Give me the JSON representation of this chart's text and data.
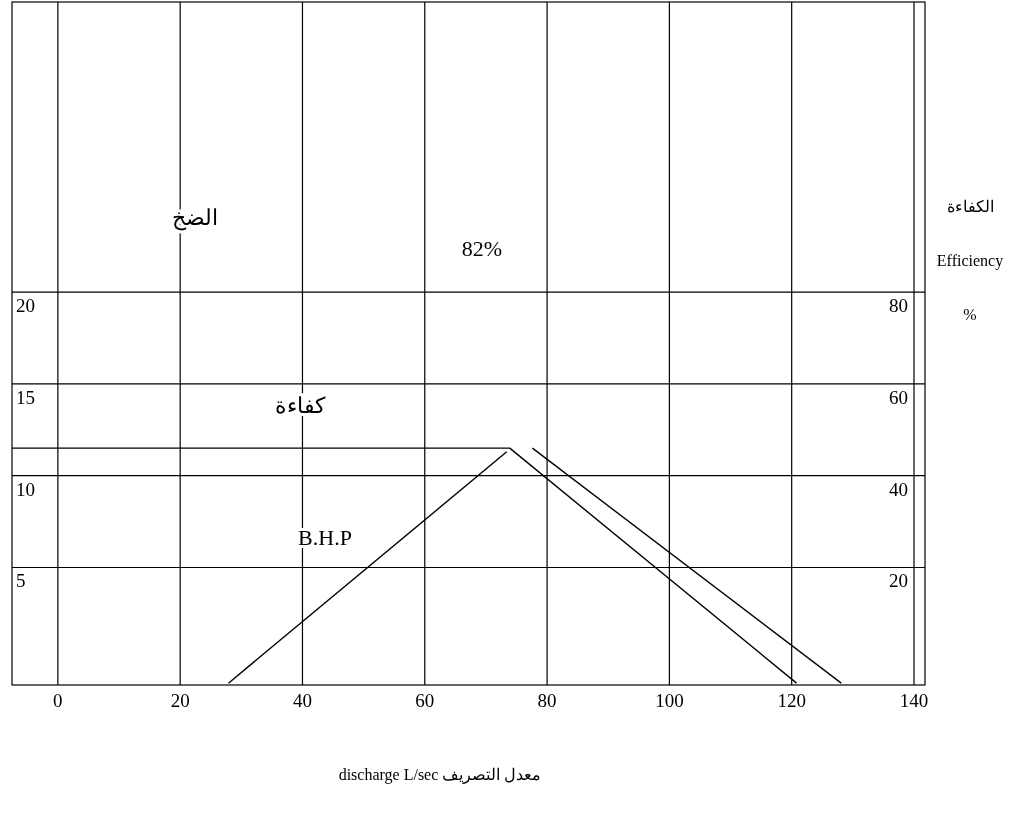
{
  "chart_data": {
    "type": "line",
    "xlabel": "discharge  L/sec        معدل التصريف",
    "y2label": "الكفاءة\nEfficiency\n%",
    "xlim": [
      -7.5,
      141.8
    ],
    "xticks": [
      0,
      20,
      40,
      60,
      80,
      100,
      120,
      140
    ],
    "ylim": [
      -1.4,
      35.8
    ],
    "yticks": [
      5,
      10,
      15,
      20
    ],
    "y2lim": [
      -5.6,
      143.2
    ],
    "y2ticks": [
      20,
      40,
      60,
      80
    ],
    "grid": true,
    "marker": "none",
    "line_style": "solid",
    "series": [
      {
        "color": "#000000",
        "x": [
          -7.5,
          73.9,
          120.8
        ],
        "values": [
          11.5,
          11.5,
          -1.3
        ]
      },
      {
        "color": "#000000",
        "x": [
          27.9,
          73.4
        ],
        "values": [
          -1.3,
          11.3
        ]
      },
      {
        "color": "#000000",
        "x": [
          77.6,
          128.1
        ],
        "values": [
          11.5,
          -1.3
        ]
      }
    ],
    "annotations": [
      "الضخ",
      "82%",
      "كفاءة",
      "B.H.P"
    ]
  }
}
